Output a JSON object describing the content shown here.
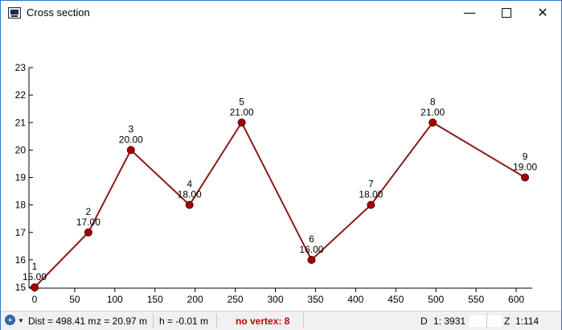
{
  "window": {
    "title": "Cross section",
    "controls": {
      "minimize": "—",
      "close": "✕"
    }
  },
  "chart_data": {
    "type": "line",
    "x": [
      0,
      67,
      120,
      193,
      258,
      345,
      419,
      496,
      611
    ],
    "y": [
      15,
      17,
      20,
      18,
      21,
      16,
      18,
      21,
      19
    ],
    "point_labels": [
      "1",
      "2",
      "3",
      "4",
      "5",
      "6",
      "7",
      "8",
      "9"
    ],
    "value_labels": [
      "15.00",
      "17.00",
      "20.00",
      "18.00",
      "21.00",
      "16.00",
      "18.00",
      "21.00",
      "19.00"
    ],
    "xlim": [
      0,
      620
    ],
    "ylim": [
      15,
      23
    ],
    "x_ticks": [
      "0",
      "50",
      "100",
      "150",
      "200",
      "250",
      "300",
      "350",
      "400",
      "450",
      "500",
      "550",
      "600"
    ],
    "y_ticks": [
      "15",
      "16",
      "17",
      "18",
      "19",
      "20",
      "21",
      "22",
      "23"
    ],
    "grid": false,
    "line_color": "#8b1a1a",
    "point_color": "#a00000"
  },
  "status": {
    "dist": "Dist = 498.41 m",
    "z": "z = 20.97 m",
    "h": "h = -0.01 m",
    "vertex": "no vertex: 8",
    "d_label": "D",
    "d_value": "1: 3931",
    "z_label": "Z",
    "z_value": "1:114",
    "tools_icon": "gear-icon"
  }
}
